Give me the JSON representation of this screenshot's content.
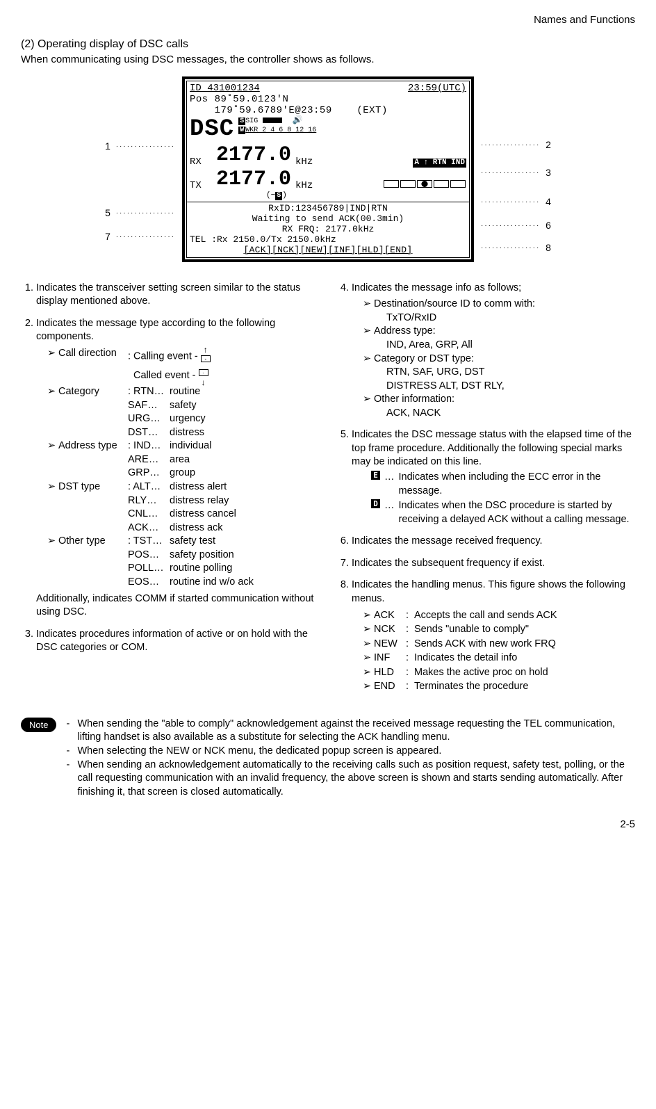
{
  "header": {
    "section": "Names and Functions"
  },
  "title": {
    "num": "(2)",
    "text": "Operating display of DSC calls"
  },
  "sub": "When communicating using DSC messages, the controller shows as follows.",
  "lcd": {
    "id_line_left": "ID 431001234",
    "id_line_right": "23:59(UTC)",
    "pos1": "Pos 89˚59.0123'N",
    "pos2": "    179˚59.6789'E@23:59    (EXT)",
    "mode": "DSC",
    "sig": "SIG",
    "wkr": "WKR 2 4 6 8 12 16",
    "rx_lbl": "RX",
    "rx_val": "2177.0",
    "rx_unit": "kHz",
    "tx_lbl": "TX",
    "tx_val": "2177.0",
    "tx_unit": "kHz",
    "msgtype": "A ↑ RTN IND",
    "s_badge": "S",
    "rxid": "RxID:123456789|IND|RTN",
    "status": "Waiting to send ACK(00.3min)",
    "rxfrq": "RX FRQ: 2177.0kHz",
    "tel": "TEL   :Rx  2150.0/Tx  2150.0kHz",
    "menu": "[ACK][NCK][NEW][INF][HLD][END]"
  },
  "callouts": {
    "l1": "1",
    "l5": "5",
    "l7": "7",
    "r2": "2",
    "r3": "3",
    "r4": "4",
    "r6": "6",
    "r8": "8"
  },
  "left": {
    "n1": "Indicates the transceiver setting screen similar to the status display mentioned above.",
    "n2": "Indicates the message type according to the following components.",
    "calldir_lbl": "Call direction",
    "calldir_a": ": Calling event  -",
    "calldir_b": "  Called event   -",
    "cat_lbl": "Category",
    "cat_rows": [
      {
        "c": "RTN…",
        "d": "routine"
      },
      {
        "c": "SAF…",
        "d": "safety"
      },
      {
        "c": "URG…",
        "d": "urgency"
      },
      {
        "c": "DST…",
        "d": "distress"
      }
    ],
    "addr_lbl": "Address type",
    "addr_rows": [
      {
        "c": "IND…",
        "d": "individual"
      },
      {
        "c": "ARE…",
        "d": "area"
      },
      {
        "c": "GRP…",
        "d": "group"
      }
    ],
    "dst_lbl": "DST type",
    "dst_rows": [
      {
        "c": "ALT…",
        "d": "distress alert"
      },
      {
        "c": "RLY…",
        "d": "distress relay"
      },
      {
        "c": "CNL…",
        "d": "distress cancel"
      },
      {
        "c": "ACK…",
        "d": "distress ack"
      }
    ],
    "other_lbl": "Other type",
    "other_rows": [
      {
        "c": "TST…",
        "d": "safety test"
      },
      {
        "c": "POS…",
        "d": "safety position"
      },
      {
        "c": "POLL…",
        "d": "routine polling"
      },
      {
        "c": "EOS…",
        "d": "routine ind w/o ack"
      }
    ],
    "n2_tail": "Additionally, indicates COMM if started communication without using DSC.",
    "n3": "Indicates procedures information of active or on hold with the DSC categories or COM."
  },
  "right": {
    "n4": "Indicates the message info as follows;",
    "n4_items": [
      {
        "h": "Destination/source ID to comm with:",
        "b": "TxTO/RxID"
      },
      {
        "h": "Address type:",
        "b": "IND, Area, GRP, All"
      },
      {
        "h": "Category or DST type:",
        "b": "RTN, SAF, URG, DST\nDISTRESS ALT, DST RLY,"
      },
      {
        "h": "Other information:",
        "b": "ACK, NACK"
      }
    ],
    "n5": "Indicates the DSC message status with the elapsed time of the top frame procedure. Additionally the following special marks may be indicated on this line.",
    "n5_e": "Indicates when including the ECC error in the message.",
    "n5_d": "Indicates when the DSC procedure is started by receiving a delayed ACK without a calling message.",
    "n6": "Indicates the message received frequency.",
    "n7": "Indicates the subsequent frequency if exist.",
    "n8": "Indicates the handling menus. This figure shows the following menus.",
    "n8_items": [
      {
        "c": "ACK",
        "d": "Accepts the call and sends ACK"
      },
      {
        "c": "NCK",
        "d": "Sends \"unable to comply\""
      },
      {
        "c": "NEW",
        "d": "Sends ACK with new work FRQ"
      },
      {
        "c": "INF",
        "d": "Indicates the detail info"
      },
      {
        "c": "HLD",
        "d": "Makes the active proc on hold"
      },
      {
        "c": "END",
        "d": "Terminates the procedure"
      }
    ]
  },
  "note": {
    "label": "Note",
    "items": [
      "When sending the \"able to comply\" acknowledgement against the received message requesting the TEL communication, lifting handset is also available as a substitute for selecting the ACK handling menu.",
      "When selecting the NEW or NCK menu, the dedicated popup screen is appeared.",
      "When sending an acknowledgement automatically to the receiving calls such as position request, safety test, polling, or the call requesting communication with an invalid frequency, the above screen is shown and starts sending automatically. After finishing it, that screen is closed automatically."
    ]
  },
  "pagenum": "2-5"
}
